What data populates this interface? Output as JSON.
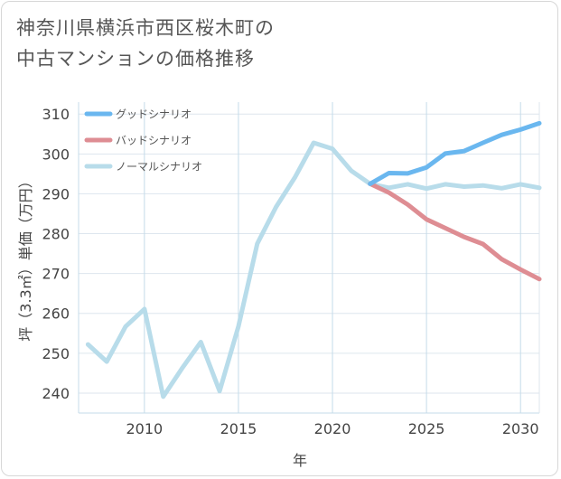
{
  "title_line1": "神奈川県横浜市西区桜木町の",
  "title_line2": "中古マンションの価格推移",
  "chart_data": {
    "type": "line",
    "xlabel": "年",
    "ylabel": "坪（3.3㎡）単価（万円）",
    "xlim": [
      2006.5,
      2031
    ],
    "ylim": [
      235,
      313
    ],
    "x_ticks": [
      2010,
      2015,
      2020,
      2025,
      2030
    ],
    "y_ticks": [
      240,
      250,
      260,
      270,
      280,
      290,
      300,
      310
    ],
    "grid": true,
    "legend_position": "top-left",
    "series": [
      {
        "name": "グッドシナリオ",
        "color": "#6ab7ef",
        "x": [
          2022,
          2023,
          2024,
          2025,
          2026,
          2027,
          2028,
          2029,
          2030,
          2031
        ],
        "y": [
          292.5,
          295.2,
          295.1,
          296.6,
          300.1,
          300.7,
          302.8,
          304.8,
          306.1,
          307.7
        ]
      },
      {
        "name": "バッドシナリオ",
        "color": "#de8d93",
        "x": [
          2022,
          2023,
          2024,
          2025,
          2026,
          2027,
          2028,
          2029,
          2030,
          2031
        ],
        "y": [
          292.5,
          290.3,
          287.3,
          283.6,
          281.4,
          279.2,
          277.4,
          273.6,
          271.0,
          268.6
        ]
      },
      {
        "name": "ノーマルシナリオ",
        "color": "#b8dcea",
        "x": [
          2007,
          2008,
          2009,
          2010,
          2011,
          2012,
          2013,
          2014,
          2015,
          2016,
          2017,
          2018,
          2019,
          2020,
          2021,
          2022,
          2023,
          2024,
          2025,
          2026,
          2027,
          2028,
          2029,
          2030,
          2031
        ],
        "y": [
          252.2,
          247.9,
          256.7,
          261.1,
          239.1,
          246.2,
          252.8,
          240.5,
          256.7,
          277.5,
          286.7,
          294.1,
          302.8,
          301.3,
          295.8,
          292.5,
          291.5,
          292.4,
          291.3,
          292.4,
          291.8,
          292.1,
          291.4,
          292.4,
          291.5
        ]
      }
    ]
  }
}
